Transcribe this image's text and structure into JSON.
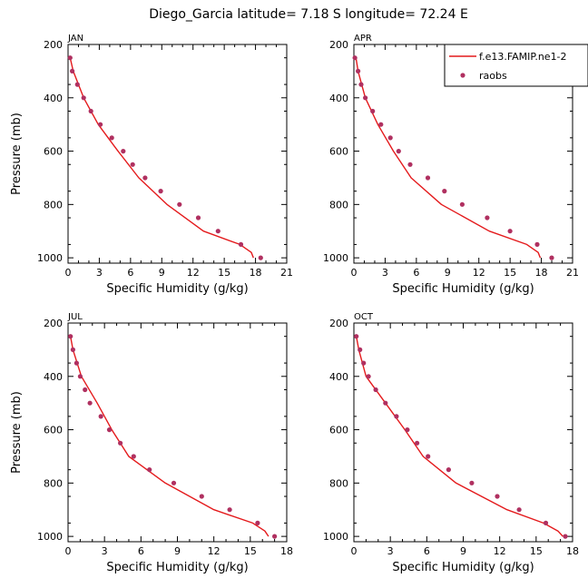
{
  "title": "Diego_Garcia   latitude= 7.18 S longitude= 72.24 E",
  "legend": {
    "model_label": "f.e13.FAMIP.ne1-2",
    "obs_label": "raobs",
    "model_color": "#e41a1c",
    "obs_color": "#b03060"
  },
  "chart_data": [
    {
      "type": "line",
      "panel": "JAN",
      "xlabel": "Specific Humidity (g/kg)",
      "ylabel": "Pressure (mb)",
      "xlim": [
        0,
        21
      ],
      "xticks": [
        0,
        3,
        6,
        9,
        12,
        15,
        18,
        21
      ],
      "ylim": [
        1020,
        200
      ],
      "yticks": [
        200,
        400,
        600,
        800,
        1000
      ],
      "model": {
        "p": [
          250,
          300,
          400,
          500,
          600,
          700,
          800,
          900,
          950,
          980,
          1000
        ],
        "q": [
          0.2,
          0.5,
          1.5,
          2.9,
          4.8,
          6.8,
          9.5,
          13.0,
          16.5,
          17.6,
          17.8
        ]
      },
      "raobs": {
        "p": [
          250,
          300,
          350,
          400,
          450,
          500,
          550,
          600,
          650,
          700,
          750,
          800,
          850,
          900,
          950,
          1000
        ],
        "q": [
          0.2,
          0.4,
          0.9,
          1.5,
          2.2,
          3.1,
          4.2,
          5.3,
          6.2,
          7.4,
          8.9,
          10.7,
          12.5,
          14.4,
          16.6,
          18.5
        ]
      }
    },
    {
      "type": "line",
      "panel": "APR",
      "xlabel": "Specific Humidity (g/kg)",
      "ylabel": "",
      "xlim": [
        0,
        21
      ],
      "xticks": [
        0,
        3,
        6,
        9,
        12,
        15,
        18,
        21
      ],
      "ylim": [
        1020,
        200
      ],
      "yticks": [
        200,
        400,
        600,
        800,
        1000
      ],
      "model": {
        "p": [
          250,
          300,
          400,
          500,
          600,
          700,
          800,
          900,
          950,
          980,
          1000
        ],
        "q": [
          0.2,
          0.4,
          1.1,
          2.3,
          3.8,
          5.5,
          8.4,
          13.0,
          16.6,
          17.7,
          17.9
        ]
      },
      "raobs": {
        "p": [
          250,
          300,
          350,
          400,
          450,
          500,
          550,
          600,
          650,
          700,
          750,
          800,
          850,
          900,
          950,
          1000
        ],
        "q": [
          0.1,
          0.4,
          0.7,
          1.1,
          1.8,
          2.6,
          3.5,
          4.3,
          5.4,
          7.1,
          8.7,
          10.4,
          12.8,
          15.0,
          17.6,
          19.0
        ]
      }
    },
    {
      "type": "line",
      "panel": "JUL",
      "xlabel": "Specific Humidity (g/kg)",
      "ylabel": "Pressure (mb)",
      "xlim": [
        0,
        18
      ],
      "xticks": [
        0,
        3,
        6,
        9,
        12,
        15,
        18
      ],
      "ylim": [
        1020,
        200
      ],
      "yticks": [
        200,
        400,
        600,
        800,
        1000
      ],
      "model": {
        "p": [
          250,
          300,
          400,
          500,
          600,
          700,
          800,
          900,
          950,
          980,
          1000
        ],
        "q": [
          0.2,
          0.4,
          1.1,
          2.4,
          3.6,
          5.0,
          8.0,
          12.0,
          15.2,
          16.2,
          16.5
        ]
      },
      "raobs": {
        "p": [
          250,
          300,
          350,
          400,
          450,
          500,
          550,
          600,
          650,
          700,
          750,
          800,
          850,
          900,
          950,
          1000
        ],
        "q": [
          0.2,
          0.4,
          0.7,
          1.0,
          1.4,
          1.8,
          2.7,
          3.4,
          4.3,
          5.4,
          6.7,
          8.7,
          11.0,
          13.3,
          15.6,
          17.0
        ]
      }
    },
    {
      "type": "line",
      "panel": "OCT",
      "xlabel": "Specific Humidity (g/kg)",
      "ylabel": "",
      "xlim": [
        0,
        18
      ],
      "xticks": [
        0,
        3,
        6,
        9,
        12,
        15,
        18
      ],
      "ylim": [
        1020,
        200
      ],
      "yticks": [
        200,
        400,
        600,
        800,
        1000
      ],
      "model": {
        "p": [
          250,
          300,
          400,
          500,
          600,
          700,
          800,
          900,
          950,
          980,
          1000
        ],
        "q": [
          0.2,
          0.4,
          1.0,
          2.6,
          4.2,
          5.7,
          8.4,
          12.6,
          15.6,
          16.8,
          17.2
        ]
      },
      "raobs": {
        "p": [
          250,
          300,
          350,
          400,
          450,
          500,
          550,
          600,
          650,
          700,
          750,
          800,
          850,
          900,
          950,
          1000
        ],
        "q": [
          0.2,
          0.5,
          0.8,
          1.2,
          1.8,
          2.6,
          3.5,
          4.4,
          5.2,
          6.1,
          7.8,
          9.7,
          11.8,
          13.6,
          15.8,
          17.4
        ]
      }
    }
  ]
}
